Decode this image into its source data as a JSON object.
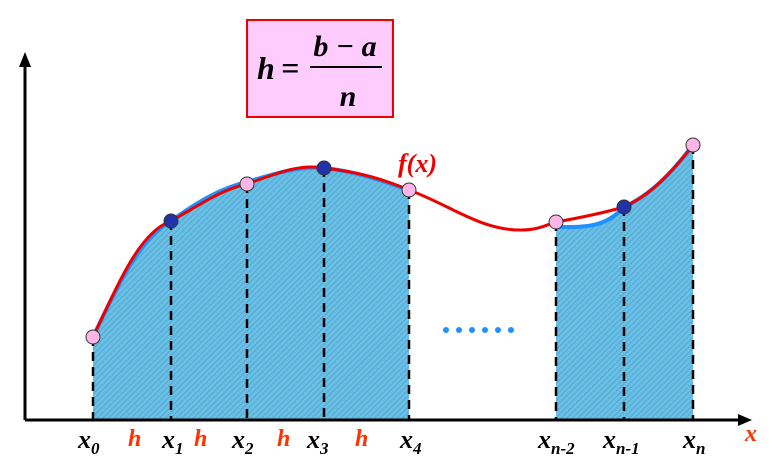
{
  "formula": {
    "lhs": "h",
    "equals": "=",
    "numerator": "b − a",
    "denominator": "n"
  },
  "function_label": "f(x)",
  "axis_label": "x",
  "nodes": [
    {
      "base": "x",
      "sub": "0"
    },
    {
      "base": "x",
      "sub": "1"
    },
    {
      "base": "x",
      "sub": "2"
    },
    {
      "base": "x",
      "sub": "3"
    },
    {
      "base": "x",
      "sub": "4"
    },
    {
      "base": "x",
      "sub": "n-2"
    },
    {
      "base": "x",
      "sub": "n-1"
    },
    {
      "base": "x",
      "sub": "n"
    }
  ],
  "step_labels": [
    "h",
    "h",
    "h",
    "h"
  ]
}
